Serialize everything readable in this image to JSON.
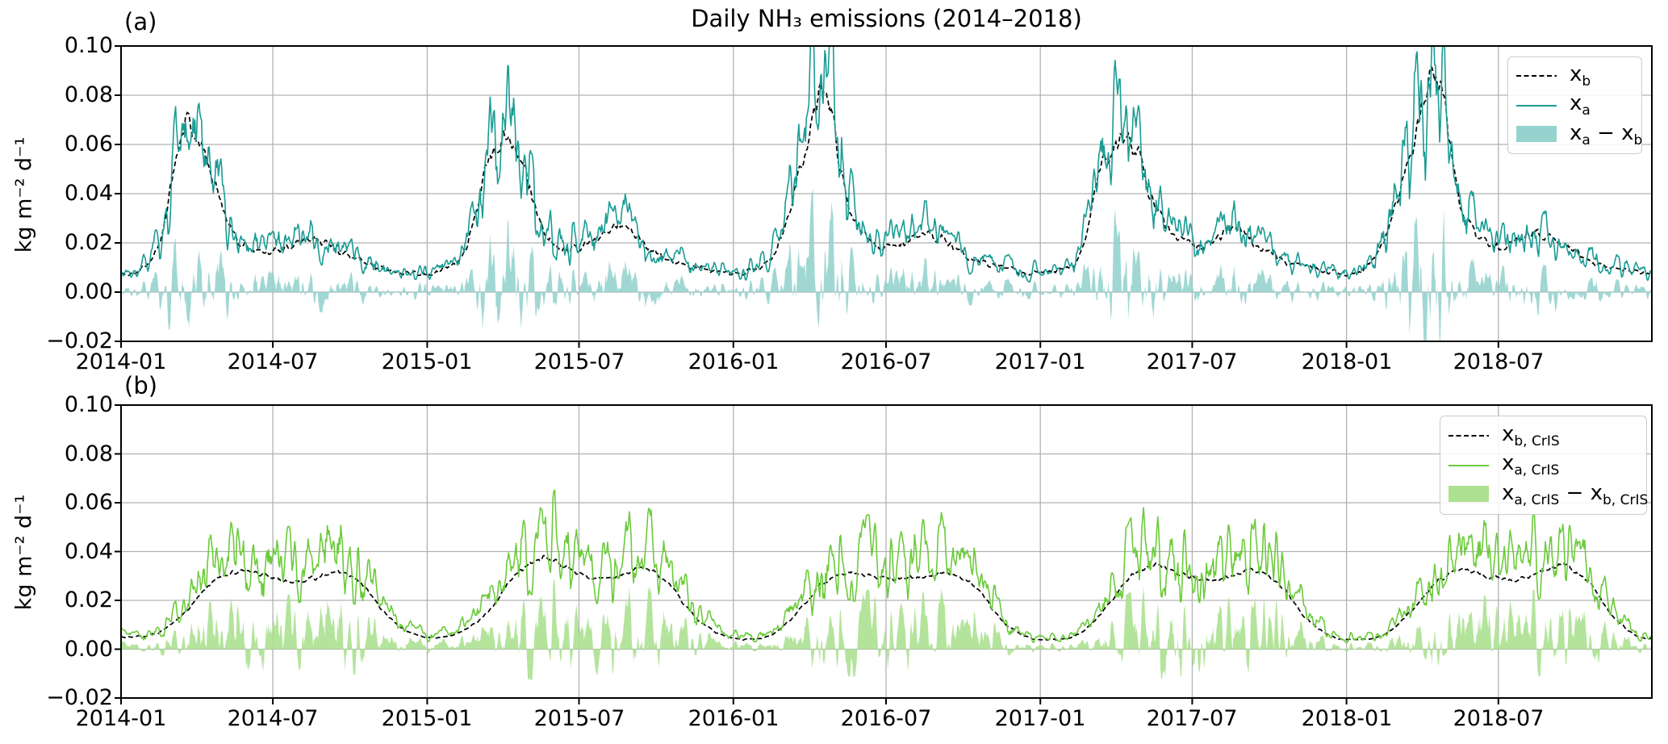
{
  "figure": {
    "title": "Daily NH₃ emissions (2014–2018)",
    "background_color": "#ffffff"
  },
  "axis": {
    "ylabel": "kg m⁻² d⁻¹",
    "ylim": [
      -0.02,
      0.1
    ],
    "ytick_values": [
      0.1,
      0.08,
      0.06,
      0.04,
      0.02,
      0.0,
      -0.02
    ],
    "ytick_labels": [
      "0.10",
      "0.08",
      "0.06",
      "0.04",
      "0.02",
      "0.00",
      "−0.02"
    ],
    "xtick_labels": [
      "2014-01",
      "2014-07",
      "2015-01",
      "2015-07",
      "2016-01",
      "2016-07",
      "2017-01",
      "2017-07",
      "2018-01",
      "2018-07"
    ],
    "x_start": "2014-01",
    "x_end": "2018-12",
    "grid_color": "#b2b2b2",
    "spine_color": "#000000"
  },
  "chart_data": [
    {
      "type": "line",
      "panel_label": "(a)",
      "title": "Daily NH₃ emissions (2014–2018)",
      "ylabel": "kg m⁻² d⁻¹",
      "ylim": [
        -0.02,
        0.1
      ],
      "x_range": [
        "2014-01",
        "2018-12"
      ],
      "series": [
        {
          "name": "x_b",
          "style": "dashed",
          "color": "#000000",
          "description": "background emissions, monthly mean values (kg m-2 d-1), Jan 2014 - Dec 2018",
          "monthly_values": [
            0.008,
            0.02,
            0.068,
            0.048,
            0.022,
            0.017,
            0.018,
            0.022,
            0.017,
            0.012,
            0.009,
            0.008,
            0.009,
            0.018,
            0.058,
            0.058,
            0.026,
            0.018,
            0.021,
            0.027,
            0.02,
            0.013,
            0.01,
            0.008,
            0.008,
            0.015,
            0.045,
            0.082,
            0.035,
            0.019,
            0.019,
            0.024,
            0.019,
            0.013,
            0.01,
            0.008,
            0.009,
            0.014,
            0.052,
            0.062,
            0.035,
            0.022,
            0.019,
            0.026,
            0.019,
            0.013,
            0.01,
            0.008,
            0.008,
            0.022,
            0.055,
            0.09,
            0.035,
            0.02,
            0.02,
            0.024,
            0.019,
            0.013,
            0.01,
            0.008
          ],
          "synth": {
            "seed": 11,
            "wiggle_abs": 0.0006,
            "wiggle_rel": 0.07
          }
        },
        {
          "name": "x_a",
          "style": "solid",
          "color": "#1a9c94",
          "description": "analysis emissions; equals x_b plus the difference series"
        },
        {
          "name": "x_a − x_b",
          "style": "area",
          "color": "#96d3ce",
          "baseline": 0,
          "description": "daily analysis-minus-background increment, mostly +0.00-0.02, spikes ±0.02-0.06 near spring peaks",
          "synth": {
            "seed": 21,
            "mean_frac": 0.09,
            "noise_frac": 0.48
          }
        }
      ],
      "legend": [
        {
          "sample": "dashed-line",
          "color": "#000000",
          "parts": [
            [
              "x",
              "b"
            ]
          ]
        },
        {
          "sample": "line",
          "color": "#1a9c94",
          "parts": [
            [
              "x",
              "a"
            ]
          ]
        },
        {
          "sample": "patch",
          "color": "#96d3ce",
          "parts": [
            [
              "x",
              "a"
            ],
            [
              " − ",
              ""
            ],
            [
              "x",
              "b"
            ]
          ]
        }
      ]
    },
    {
      "type": "line",
      "panel_label": "(b)",
      "ylabel": "kg m⁻² d⁻¹",
      "ylim": [
        -0.02,
        0.1
      ],
      "x_range": [
        "2014-01",
        "2018-12"
      ],
      "series": [
        {
          "name": "x_b, CrIS",
          "style": "dashed",
          "color": "#000000",
          "description": "CrIS background emissions, monthly mean values (kg m-2 d-1), Jan 2014 - Dec 2018",
          "monthly_values": [
            0.005,
            0.007,
            0.015,
            0.027,
            0.032,
            0.031,
            0.028,
            0.029,
            0.032,
            0.026,
            0.013,
            0.006,
            0.005,
            0.008,
            0.017,
            0.031,
            0.037,
            0.033,
            0.029,
            0.03,
            0.033,
            0.026,
            0.013,
            0.006,
            0.004,
            0.006,
            0.015,
            0.027,
            0.031,
            0.03,
            0.029,
            0.03,
            0.031,
            0.025,
            0.012,
            0.005,
            0.004,
            0.006,
            0.016,
            0.029,
            0.034,
            0.031,
            0.028,
            0.03,
            0.032,
            0.025,
            0.012,
            0.005,
            0.004,
            0.006,
            0.015,
            0.027,
            0.033,
            0.03,
            0.028,
            0.031,
            0.034,
            0.027,
            0.013,
            0.005
          ],
          "synth": {
            "seed": 31,
            "wiggle_abs": 0.0002,
            "wiggle_rel": 0.03
          }
        },
        {
          "name": "x_a, CrIS",
          "style": "solid",
          "color": "#6ccb3c",
          "description": "CrIS analysis emissions; equals x_b,CrIS plus the difference series"
        },
        {
          "name": "x_a, CrIS − x_b, CrIS",
          "style": "area",
          "color": "#ace191",
          "baseline": 0,
          "description": "daily CrIS analysis-minus-background increment, mostly +0.00-0.02",
          "synth": {
            "seed": 41,
            "mean_frac": 0.22,
            "noise_frac": 0.58
          }
        }
      ],
      "legend": [
        {
          "sample": "dashed-line",
          "color": "#000000",
          "parts": [
            [
              "x",
              "b, CrIS"
            ]
          ]
        },
        {
          "sample": "line",
          "color": "#6ccb3c",
          "parts": [
            [
              "x",
              "a, CrIS"
            ]
          ]
        },
        {
          "sample": "patch",
          "color": "#ace191",
          "parts": [
            [
              "x",
              "a, CrIS"
            ],
            [
              " − ",
              ""
            ],
            [
              "x",
              "b, CrIS"
            ]
          ]
        }
      ]
    }
  ]
}
